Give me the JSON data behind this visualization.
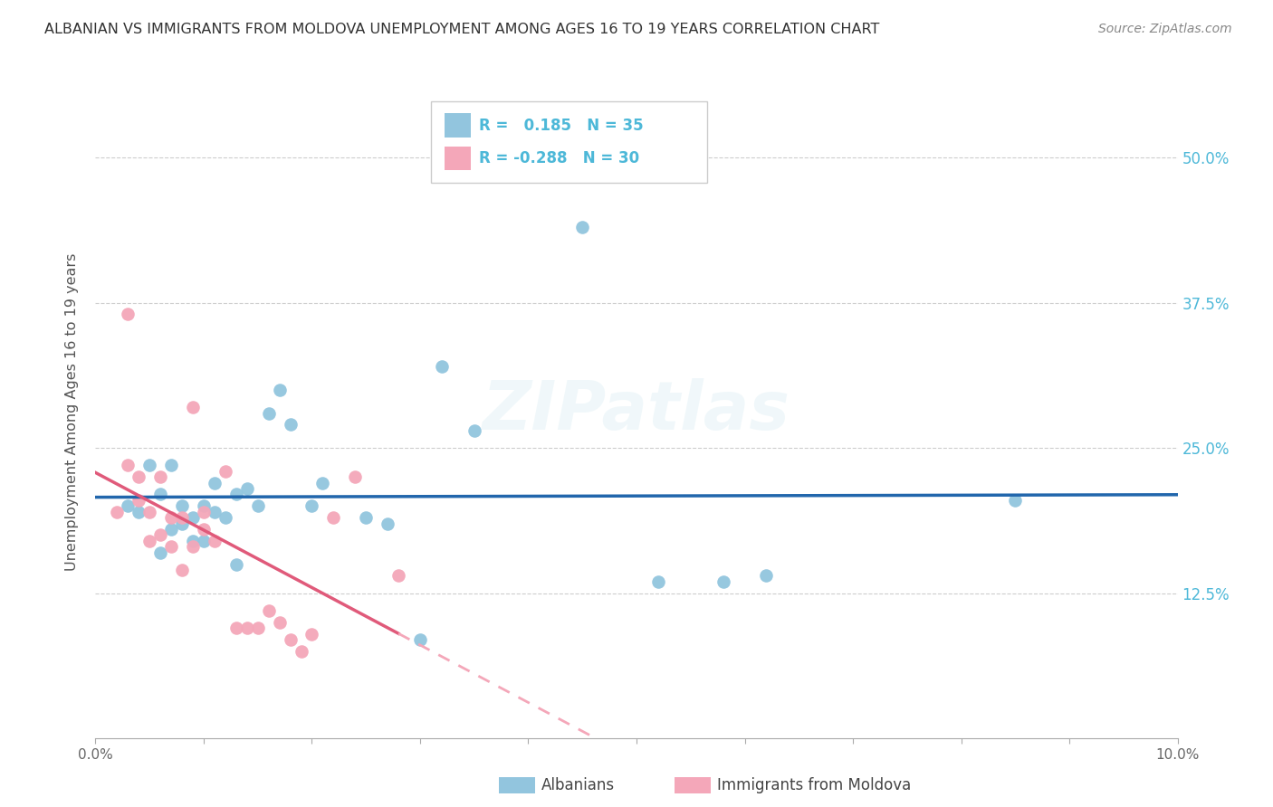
{
  "title": "ALBANIAN VS IMMIGRANTS FROM MOLDOVA UNEMPLOYMENT AMONG AGES 16 TO 19 YEARS CORRELATION CHART",
  "source": "Source: ZipAtlas.com",
  "ylabel": "Unemployment Among Ages 16 to 19 years",
  "legend_albanians": "Albanians",
  "legend_moldova": "Immigrants from Moldova",
  "R_albanians": 0.185,
  "N_albanians": 35,
  "R_moldova": -0.288,
  "N_moldova": 30,
  "color_blue": "#92c5de",
  "color_pink": "#f4a7b9",
  "color_line_blue": "#2166ac",
  "color_line_pink_solid": "#e05a7a",
  "color_line_pink_dashed": "#f4a7b9",
  "background": "#ffffff",
  "grid_color": "#c8c8c8",
  "title_color": "#333333",
  "axis_label_color": "#4db8d8",
  "albanians_x": [
    0.3,
    0.4,
    0.5,
    0.6,
    0.6,
    0.7,
    0.7,
    0.8,
    0.8,
    0.9,
    0.9,
    1.0,
    1.0,
    1.1,
    1.1,
    1.2,
    1.3,
    1.3,
    1.4,
    1.5,
    1.6,
    1.7,
    1.8,
    2.0,
    2.1,
    2.5,
    2.7,
    3.0,
    3.2,
    3.5,
    4.5,
    5.2,
    5.8,
    6.2,
    8.5
  ],
  "albanians_y": [
    20.0,
    19.5,
    23.5,
    21.0,
    16.0,
    23.5,
    18.0,
    20.0,
    18.5,
    19.0,
    17.0,
    20.0,
    17.0,
    22.0,
    19.5,
    19.0,
    21.0,
    15.0,
    21.5,
    20.0,
    28.0,
    30.0,
    27.0,
    20.0,
    22.0,
    19.0,
    18.5,
    8.5,
    32.0,
    26.5,
    44.0,
    13.5,
    13.5,
    14.0,
    20.5
  ],
  "moldova_x": [
    0.2,
    0.3,
    0.3,
    0.4,
    0.4,
    0.5,
    0.5,
    0.6,
    0.6,
    0.7,
    0.7,
    0.8,
    0.8,
    0.9,
    0.9,
    1.0,
    1.0,
    1.1,
    1.2,
    1.3,
    1.4,
    1.5,
    1.6,
    1.7,
    1.8,
    1.9,
    2.0,
    2.2,
    2.4,
    2.8
  ],
  "moldova_y": [
    19.5,
    36.5,
    23.5,
    22.5,
    20.5,
    19.5,
    17.0,
    22.5,
    17.5,
    19.0,
    16.5,
    19.0,
    14.5,
    28.5,
    16.5,
    19.5,
    18.0,
    17.0,
    23.0,
    9.5,
    9.5,
    9.5,
    11.0,
    10.0,
    8.5,
    7.5,
    9.0,
    19.0,
    22.5,
    14.0
  ],
  "xmin": 0.0,
  "xmax": 10.0,
  "ymin": 0.0,
  "ymax": 56.25,
  "yticks": [
    0.0,
    12.5,
    25.0,
    37.5,
    50.0
  ],
  "ytick_labels_right": [
    "",
    "12.5%",
    "25.0%",
    "37.5%",
    "50.0%"
  ],
  "xticks": [
    0.0,
    1.0,
    2.0,
    3.0,
    4.0,
    5.0,
    6.0,
    7.0,
    8.0,
    9.0,
    10.0
  ],
  "xtick_labels": [
    "0.0%",
    "",
    "",
    "",
    "",
    "",
    "",
    "",
    "",
    "",
    "10.0%"
  ]
}
